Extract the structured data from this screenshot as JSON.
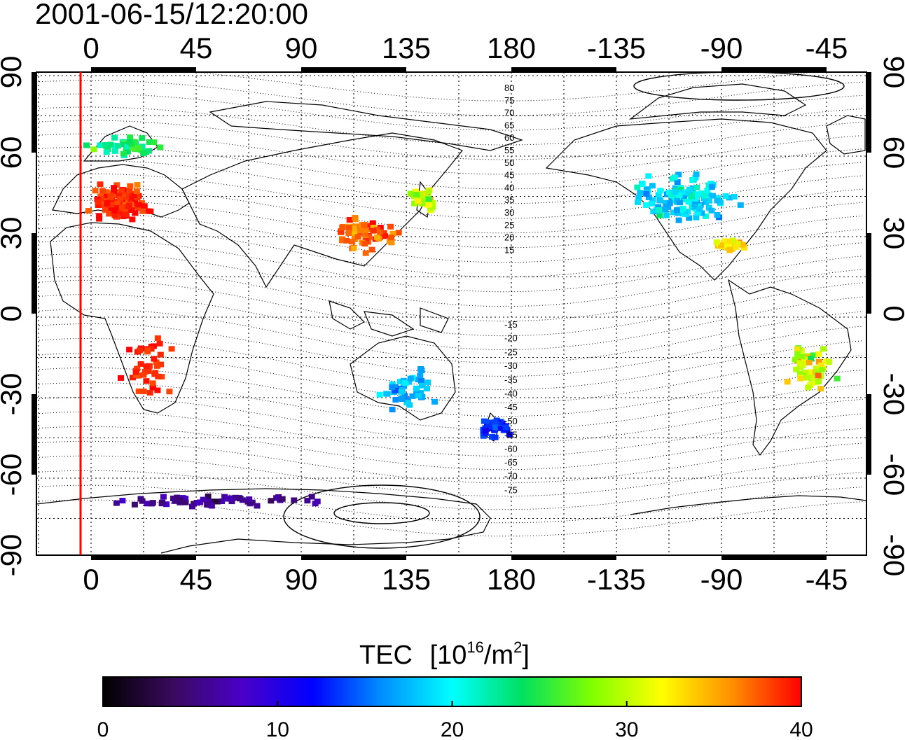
{
  "timestamp": "2001-06-15/12:20:00",
  "axes": {
    "top_lon_labels": [
      "0",
      "45",
      "90",
      "135",
      "180",
      "-135",
      "-90",
      "-45"
    ],
    "bottom_lon_labels": [
      "0",
      "45",
      "90",
      "135",
      "180",
      "-135",
      "-90",
      "-45"
    ],
    "left_lat_labels": [
      "90",
      "60",
      "30",
      "0",
      "-30",
      "-60",
      "-90"
    ],
    "right_lat_labels": [
      "90",
      "60",
      "30",
      "0",
      "-30",
      "-60",
      "-90"
    ]
  },
  "contour_labels": {
    "north": [
      "80",
      "75",
      "70",
      "65",
      "60",
      "55",
      "50",
      "45",
      "40",
      "35",
      "30",
      "25",
      "20",
      "15"
    ],
    "south": [
      "-15",
      "-20",
      "-25",
      "-30",
      "-35",
      "-40",
      "-45",
      "-50",
      "-55",
      "-60",
      "-65",
      "-70",
      "-75"
    ]
  },
  "colorbar": {
    "title": "TEC",
    "unit_base": "10",
    "unit_exp": "16",
    "unit_mid": "/m",
    "unit_exp2": "2",
    "min": 0,
    "max": 40,
    "tick_labels": [
      "0",
      "10",
      "20",
      "30",
      "40"
    ],
    "stops": [
      "#000000",
      "#3a0a5e",
      "#4a00c8",
      "#0000ff",
      "#0090ff",
      "#00ffff",
      "#00e060",
      "#80ff00",
      "#ffff00",
      "#ff9000",
      "#ff0000"
    ]
  },
  "terminator_color": "#ff0000",
  "tec_clusters": [
    {
      "region": "europe",
      "value": 39
    },
    {
      "region": "scandinavia",
      "value": 24
    },
    {
      "region": "east-asia",
      "value": 37
    },
    {
      "region": "japan",
      "value": 30
    },
    {
      "region": "north-america",
      "value": 19
    },
    {
      "region": "gulf",
      "value": 33
    },
    {
      "region": "south-america",
      "value": 30
    },
    {
      "region": "australia",
      "value": 17
    },
    {
      "region": "new-zealand",
      "value": 13
    },
    {
      "region": "antarctica",
      "value": 6
    },
    {
      "region": "africa",
      "value": 39
    }
  ]
}
